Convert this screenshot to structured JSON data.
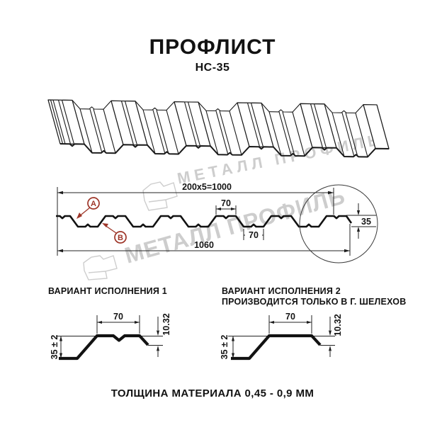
{
  "header": {
    "title": "ПРОФЛИСТ",
    "subtitle": "НС-35"
  },
  "watermark": {
    "text": "МЕТАЛЛ ПРОФИЛЬ",
    "color": "#c8c8c8"
  },
  "cross_section": {
    "dim_coverage": "200x5=1000",
    "dim_top_flange": "70",
    "dim_bottom_flange": "70",
    "dim_overall_width": "1060",
    "dim_height": "35",
    "marker_a": "A",
    "marker_b": "B",
    "marker_color": "#9e3528"
  },
  "variants": {
    "v1": {
      "title": "ВАРИАНТ ИСПОЛНЕНИЯ 1",
      "dim_flange": "70",
      "dim_height": "35 ± 2",
      "dim_lip": "10.32"
    },
    "v2": {
      "title": "ВАРИАНТ ИСПОЛНЕНИЯ 2",
      "note": "ПРОИЗВОДИТСЯ ТОЛЬКО В Г. ШЕЛЕХОВ",
      "dim_flange": "70",
      "dim_height": "35 ± 2",
      "dim_lip": "10.32"
    }
  },
  "footer": {
    "note": "ТОЛЩИНА МАТЕРИАЛА 0,45 - 0,9 ММ"
  }
}
